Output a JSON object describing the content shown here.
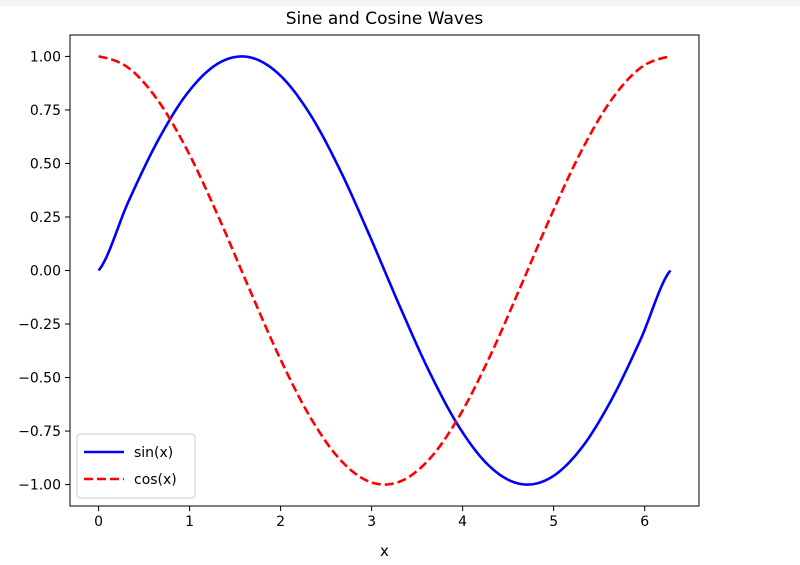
{
  "chart_data": {
    "type": "line",
    "title": "Sine and Cosine Waves",
    "xlabel": "x",
    "ylabel": "",
    "xlim": [
      -0.314,
      6.597
    ],
    "ylim": [
      -1.1,
      1.1
    ],
    "xticks": [
      0,
      1,
      2,
      3,
      4,
      5,
      6
    ],
    "xtick_labels": [
      "0",
      "1",
      "2",
      "3",
      "4",
      "5",
      "6"
    ],
    "yticks": [
      1.0,
      0.75,
      0.5,
      0.25,
      0.0,
      -0.25,
      -0.5,
      -0.75,
      -1.0
    ],
    "ytick_labels": [
      "1.00",
      "0.75",
      "0.50",
      "0.25",
      "0.00",
      "−0.25",
      "−0.50",
      "−0.75",
      "−1.00"
    ],
    "grid": false,
    "legend_position": "lower-left",
    "series": [
      {
        "name": "sin(x)",
        "color": "#0000ff",
        "style": "solid",
        "x": [
          0,
          0.3307,
          0.6614,
          0.9921,
          1.3228,
          1.6535,
          1.9842,
          2.3149,
          2.6456,
          2.9763,
          3.3069,
          3.6376,
          3.9683,
          4.299,
          4.6297,
          4.9604,
          5.2911,
          5.6218,
          5.9525,
          6.2832
        ],
        "y": [
          0.0,
          0.3247,
          0.6142,
          0.8372,
          0.9694,
          0.9966,
          0.9158,
          0.7357,
          0.4759,
          0.1646,
          -0.1646,
          -0.4759,
          -0.7357,
          -0.9158,
          -0.9966,
          -0.9694,
          -0.8372,
          -0.6142,
          -0.3247,
          0.0
        ]
      },
      {
        "name": "cos(x)",
        "color": "#ff0000",
        "style": "dashed",
        "x": [
          0,
          0.3307,
          0.6614,
          0.9921,
          1.3228,
          1.6535,
          1.9842,
          2.3149,
          2.6456,
          2.9763,
          3.3069,
          3.6376,
          3.9683,
          4.299,
          4.6297,
          4.9604,
          5.2911,
          5.6218,
          5.9525,
          6.2832
        ],
        "y": [
          1.0,
          0.9458,
          0.7891,
          0.5469,
          0.2455,
          -0.0826,
          -0.4017,
          -0.6773,
          -0.8795,
          -0.9864,
          -0.9864,
          -0.8795,
          -0.6773,
          -0.4017,
          -0.0826,
          0.2455,
          0.5469,
          0.7891,
          0.9458,
          1.0
        ]
      }
    ]
  }
}
